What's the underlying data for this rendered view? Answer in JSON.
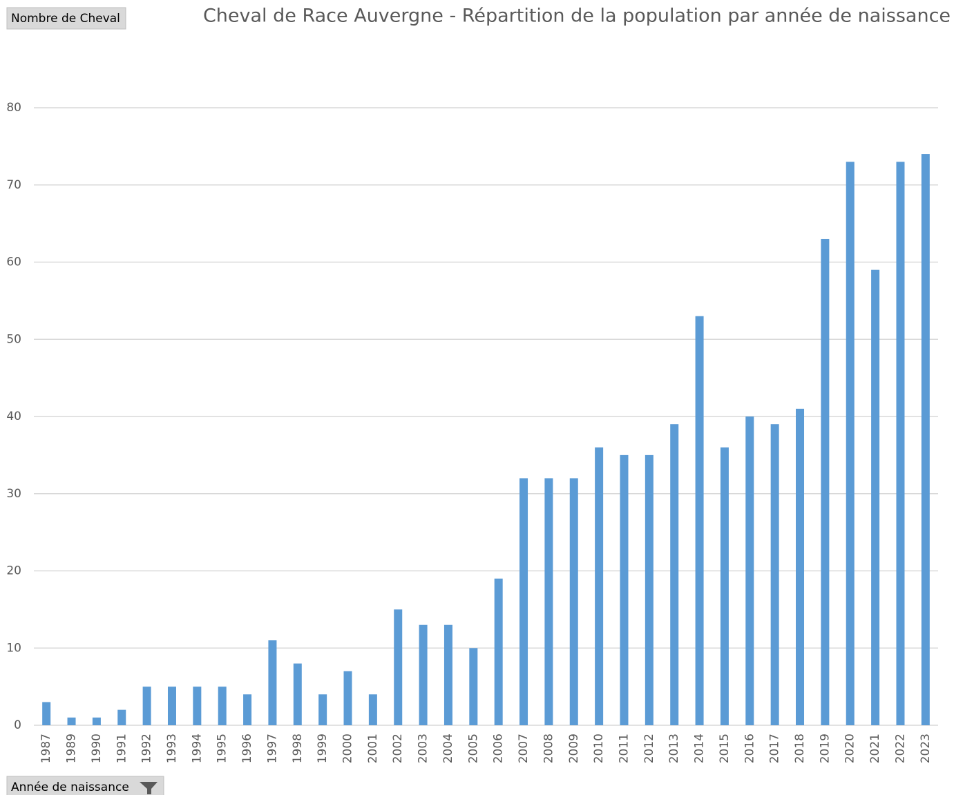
{
  "buttons": {
    "value_field": "Nombre de Cheval",
    "axis_field": "Année de naissance"
  },
  "chart_data": {
    "type": "bar",
    "title": "Cheval de Race Auvergne - Répartition de la population par année de naissance",
    "categories": [
      "1987",
      "1989",
      "1990",
      "1991",
      "1992",
      "1993",
      "1994",
      "1995",
      "1996",
      "1997",
      "1998",
      "1999",
      "2000",
      "2001",
      "2002",
      "2003",
      "2004",
      "2005",
      "2006",
      "2007",
      "2008",
      "2009",
      "2010",
      "2011",
      "2012",
      "2013",
      "2014",
      "2015",
      "2016",
      "2017",
      "2018",
      "2019",
      "2020",
      "2021",
      "2022",
      "2023"
    ],
    "values": [
      3,
      1,
      1,
      2,
      5,
      5,
      5,
      5,
      4,
      11,
      8,
      4,
      7,
      4,
      15,
      13,
      13,
      10,
      19,
      32,
      32,
      32,
      36,
      35,
      35,
      39,
      53,
      36,
      40,
      39,
      41,
      63,
      73,
      59,
      73,
      74
    ],
    "color": "#5b9bd5",
    "ylim": [
      0,
      80
    ],
    "yticks": [
      0,
      10,
      20,
      30,
      40,
      50,
      60,
      70,
      80
    ],
    "grid": true
  }
}
